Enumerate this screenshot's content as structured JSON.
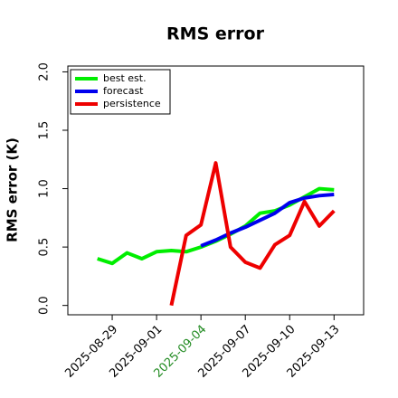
{
  "chart_data": {
    "type": "line",
    "title": "RMS error",
    "y_label": "RMS error (K)",
    "x": [
      "2025-08-28",
      "2025-08-29",
      "2025-08-30",
      "2025-08-31",
      "2025-09-01",
      "2025-09-02",
      "2025-09-03",
      "2025-09-04",
      "2025-09-05",
      "2025-09-06",
      "2025-09-07",
      "2025-09-08",
      "2025-09-09",
      "2025-09-10",
      "2025-09-11",
      "2025-09-12",
      "2025-09-13"
    ],
    "series": [
      {
        "name": "best est.",
        "color": "#00ee00",
        "values": [
          0.4,
          0.36,
          0.45,
          0.4,
          0.46,
          0.47,
          0.46,
          0.5,
          0.55,
          0.61,
          0.68,
          0.79,
          0.81,
          0.86,
          0.93,
          1.0,
          0.99
        ]
      },
      {
        "name": "forecast",
        "color": "#0000ee",
        "values": [
          null,
          null,
          null,
          null,
          null,
          null,
          null,
          0.51,
          0.56,
          0.62,
          0.67,
          0.73,
          0.79,
          0.88,
          0.92,
          0.94,
          0.95
        ]
      },
      {
        "name": "persistence",
        "color": "#ee0000",
        "values": [
          null,
          null,
          null,
          null,
          null,
          0.0,
          0.6,
          0.69,
          1.22,
          0.5,
          0.37,
          0.32,
          0.52,
          0.6,
          0.89,
          0.68,
          0.81
        ]
      }
    ],
    "xlim": [
      "2025-08-26",
      "2025-09-15"
    ],
    "xticks": [
      "2025-08-29",
      "2025-09-01",
      "2025-09-04",
      "2025-09-07",
      "2025-09-10",
      "2025-09-13"
    ],
    "xtick_colors": [
      "#000000",
      "#000000",
      "#228b22",
      "#000000",
      "#000000",
      "#000000"
    ],
    "ylim": [
      -0.08,
      2.05
    ],
    "yticks": [
      {
        "value": 0,
        "label": "0.0"
      },
      {
        "value": 0.5,
        "label": "0.5"
      },
      {
        "value": 1,
        "label": "1.0"
      },
      {
        "value": 1.5,
        "label": "1.5"
      },
      {
        "value": 2,
        "label": "2.0"
      }
    ],
    "legend": "upper left",
    "grid": false
  }
}
